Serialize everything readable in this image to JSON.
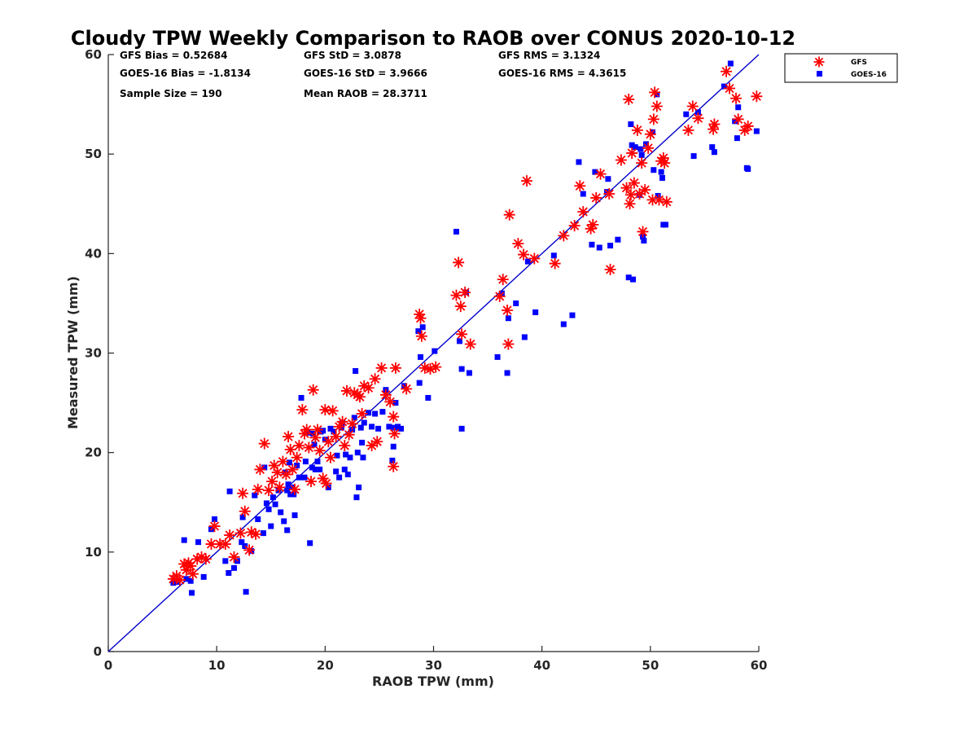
{
  "chart_data": {
    "type": "scatter",
    "title": "Cloudy TPW Weekly Comparison to RAOB over CONUS 2020-10-12",
    "xlabel": "RAOB TPW (mm)",
    "ylabel": "Measured TPW (mm)",
    "xlim": [
      0,
      60
    ],
    "ylim": [
      0,
      60
    ],
    "xticks": [
      "0",
      "10",
      "20",
      "30",
      "40",
      "50",
      "60"
    ],
    "yticks": [
      "0",
      "10",
      "20",
      "30",
      "40",
      "50",
      "60"
    ],
    "grid": false,
    "legend_position": "outside-top-right",
    "reference_line": {
      "x": [
        0,
        60
      ],
      "y": [
        0,
        60
      ],
      "color": "#0000cc"
    },
    "stats": [
      [
        "GFS Bias = 0.52684",
        "GFS StD = 3.0878",
        "GFS RMS = 3.1324"
      ],
      [
        "GOES-16 Bias = -1.8134",
        "GOES-16 StD = 3.9666",
        "GOES-16 RMS = 4.3615"
      ],
      [
        "Sample Size = 190",
        "Mean RAOB = 28.3711",
        ""
      ]
    ],
    "series": [
      {
        "name": "GFS",
        "marker": "asterisk",
        "color": "#ff0000",
        "points": [
          [
            6.0,
            7.3
          ],
          [
            6.3,
            7.6
          ],
          [
            6.6,
            7.2
          ],
          [
            7.0,
            8.8
          ],
          [
            7.2,
            8.2
          ],
          [
            7.4,
            8.9
          ],
          [
            7.6,
            8.6
          ],
          [
            7.8,
            7.8
          ],
          [
            8.2,
            9.3
          ],
          [
            8.6,
            9.5
          ],
          [
            9.0,
            9.3
          ],
          [
            9.5,
            10.8
          ],
          [
            9.8,
            12.6
          ],
          [
            10.3,
            10.8
          ],
          [
            10.8,
            10.8
          ],
          [
            11.2,
            11.7
          ],
          [
            11.6,
            9.5
          ],
          [
            12.2,
            11.9
          ],
          [
            12.4,
            15.9
          ],
          [
            12.6,
            14.1
          ],
          [
            13.0,
            10.2
          ],
          [
            13.2,
            12.0
          ],
          [
            13.6,
            11.8
          ],
          [
            13.8,
            16.3
          ],
          [
            14.0,
            18.3
          ],
          [
            14.4,
            20.9
          ],
          [
            14.8,
            16.2
          ],
          [
            15.1,
            17.1
          ],
          [
            15.3,
            18.7
          ],
          [
            15.6,
            18.0
          ],
          [
            15.8,
            16.5
          ],
          [
            16.1,
            19.1
          ],
          [
            16.4,
            17.8
          ],
          [
            16.6,
            21.6
          ],
          [
            16.8,
            20.3
          ],
          [
            17.0,
            18.3
          ],
          [
            17.2,
            16.3
          ],
          [
            17.4,
            19.5
          ],
          [
            17.6,
            20.7
          ],
          [
            17.9,
            24.3
          ],
          [
            18.1,
            21.9
          ],
          [
            18.3,
            22.3
          ],
          [
            18.5,
            20.5
          ],
          [
            18.7,
            17.1
          ],
          [
            18.9,
            26.3
          ],
          [
            19.1,
            21.5
          ],
          [
            19.3,
            22.3
          ],
          [
            19.5,
            20.2
          ],
          [
            19.8,
            17.4
          ],
          [
            20.0,
            24.3
          ],
          [
            20.1,
            16.9
          ],
          [
            20.3,
            21.1
          ],
          [
            20.5,
            19.5
          ],
          [
            20.7,
            24.2
          ],
          [
            21.0,
            21.6
          ],
          [
            21.3,
            22.6
          ],
          [
            21.6,
            23.1
          ],
          [
            21.8,
            20.7
          ],
          [
            22.0,
            26.2
          ],
          [
            22.2,
            21.8
          ],
          [
            22.5,
            22.9
          ],
          [
            22.7,
            26.0
          ],
          [
            23.0,
            25.8
          ],
          [
            23.2,
            25.6
          ],
          [
            23.4,
            23.9
          ],
          [
            23.6,
            26.7
          ],
          [
            24.0,
            26.5
          ],
          [
            24.3,
            20.7
          ],
          [
            24.6,
            27.4
          ],
          [
            24.8,
            21.1
          ],
          [
            25.2,
            28.5
          ],
          [
            25.6,
            25.8
          ],
          [
            26.0,
            25.1
          ],
          [
            26.3,
            23.6
          ],
          [
            26.4,
            21.9
          ],
          [
            26.5,
            28.5
          ],
          [
            26.3,
            18.6
          ],
          [
            27.5,
            26.4
          ],
          [
            28.7,
            33.9
          ],
          [
            28.8,
            33.5
          ],
          [
            28.9,
            31.7
          ],
          [
            29.2,
            28.5
          ],
          [
            29.7,
            28.4
          ],
          [
            30.2,
            28.6
          ],
          [
            32.1,
            35.8
          ],
          [
            32.3,
            39.1
          ],
          [
            32.5,
            34.7
          ],
          [
            32.6,
            31.9
          ],
          [
            32.9,
            36.1
          ],
          [
            33.4,
            30.9
          ],
          [
            36.1,
            35.7
          ],
          [
            36.4,
            37.4
          ],
          [
            36.8,
            34.3
          ],
          [
            36.9,
            30.9
          ],
          [
            37.0,
            43.9
          ],
          [
            37.8,
            41.0
          ],
          [
            38.3,
            39.9
          ],
          [
            38.6,
            47.3
          ],
          [
            39.3,
            39.5
          ],
          [
            41.2,
            39.0
          ],
          [
            42.0,
            41.8
          ],
          [
            43.0,
            42.8
          ],
          [
            43.5,
            46.8
          ],
          [
            43.8,
            44.2
          ],
          [
            44.5,
            42.5
          ],
          [
            44.7,
            42.9
          ],
          [
            45.0,
            45.6
          ],
          [
            45.4,
            48.0
          ],
          [
            46.2,
            46.0
          ],
          [
            46.3,
            38.4
          ],
          [
            47.3,
            49.4
          ],
          [
            47.8,
            46.6
          ],
          [
            48.0,
            55.5
          ],
          [
            48.1,
            45.0
          ],
          [
            48.2,
            45.9
          ],
          [
            48.3,
            50.1
          ],
          [
            48.5,
            47.1
          ],
          [
            48.8,
            52.4
          ],
          [
            49.0,
            46.0
          ],
          [
            49.2,
            49.1
          ],
          [
            49.3,
            42.2
          ],
          [
            49.5,
            46.4
          ],
          [
            49.8,
            50.6
          ],
          [
            50.0,
            52.0
          ],
          [
            50.2,
            45.4
          ],
          [
            50.3,
            53.5
          ],
          [
            50.4,
            56.2
          ],
          [
            50.6,
            54.8
          ],
          [
            50.8,
            45.4
          ],
          [
            51.0,
            49.3
          ],
          [
            51.2,
            49.6
          ],
          [
            51.3,
            49.1
          ],
          [
            51.5,
            45.2
          ],
          [
            53.5,
            52.4
          ],
          [
            53.9,
            54.8
          ],
          [
            54.4,
            53.6
          ],
          [
            55.8,
            52.5
          ],
          [
            55.9,
            53.0
          ],
          [
            57.0,
            58.3
          ],
          [
            57.3,
            56.6
          ],
          [
            57.9,
            55.6
          ],
          [
            58.1,
            53.5
          ],
          [
            58.7,
            52.4
          ],
          [
            59.0,
            52.8
          ],
          [
            59.8,
            55.8
          ]
        ]
      },
      {
        "name": "GOES-16",
        "marker": "square",
        "color": "#0000ff",
        "points": [
          [
            6.0,
            6.9
          ],
          [
            6.4,
            7.0
          ],
          [
            7.0,
            11.2
          ],
          [
            7.2,
            7.3
          ],
          [
            7.6,
            7.1
          ],
          [
            7.7,
            5.9
          ],
          [
            8.3,
            11.0
          ],
          [
            8.8,
            7.5
          ],
          [
            9.5,
            12.3
          ],
          [
            9.8,
            13.3
          ],
          [
            10.8,
            9.1
          ],
          [
            11.1,
            7.9
          ],
          [
            11.2,
            16.1
          ],
          [
            11.6,
            8.4
          ],
          [
            11.9,
            9.1
          ],
          [
            12.3,
            11.0
          ],
          [
            12.4,
            13.5
          ],
          [
            12.6,
            10.6
          ],
          [
            12.7,
            6.0
          ],
          [
            13.2,
            10.1
          ],
          [
            13.5,
            15.7
          ],
          [
            13.8,
            13.3
          ],
          [
            14.3,
            11.9
          ],
          [
            14.4,
            18.5
          ],
          [
            14.6,
            14.9
          ],
          [
            14.8,
            14.3
          ],
          [
            15.0,
            12.6
          ],
          [
            15.2,
            15.5
          ],
          [
            15.4,
            14.8
          ],
          [
            15.7,
            16.2
          ],
          [
            15.9,
            14.0
          ],
          [
            16.2,
            13.1
          ],
          [
            16.3,
            18.0
          ],
          [
            16.5,
            12.2
          ],
          [
            16.5,
            16.2
          ],
          [
            16.6,
            16.8
          ],
          [
            16.7,
            19.0
          ],
          [
            16.8,
            15.8
          ],
          [
            16.9,
            16.5
          ],
          [
            17.1,
            15.8
          ],
          [
            17.2,
            13.7
          ],
          [
            17.4,
            18.7
          ],
          [
            17.6,
            17.5
          ],
          [
            17.8,
            25.5
          ],
          [
            18.1,
            17.5
          ],
          [
            18.2,
            19.1
          ],
          [
            18.4,
            22.0
          ],
          [
            18.6,
            10.9
          ],
          [
            18.8,
            18.5
          ],
          [
            18.9,
            21.9
          ],
          [
            19.0,
            20.8
          ],
          [
            19.1,
            18.3
          ],
          [
            19.3,
            19.1
          ],
          [
            19.5,
            18.3
          ],
          [
            19.6,
            22.1
          ],
          [
            19.8,
            22.2
          ],
          [
            20.0,
            21.3
          ],
          [
            20.3,
            16.5
          ],
          [
            20.5,
            22.4
          ],
          [
            20.8,
            22.1
          ],
          [
            21.0,
            18.1
          ],
          [
            21.1,
            19.7
          ],
          [
            21.3,
            17.5
          ],
          [
            21.5,
            22.5
          ],
          [
            21.6,
            23.0
          ],
          [
            21.8,
            18.3
          ],
          [
            21.9,
            19.8
          ],
          [
            22.1,
            17.8
          ],
          [
            22.3,
            19.5
          ],
          [
            22.5,
            22.3
          ],
          [
            22.7,
            23.5
          ],
          [
            22.8,
            28.2
          ],
          [
            22.9,
            15.5
          ],
          [
            23.0,
            20.0
          ],
          [
            23.1,
            16.5
          ],
          [
            23.3,
            22.5
          ],
          [
            23.4,
            21.0
          ],
          [
            23.5,
            19.5
          ],
          [
            23.6,
            23.0
          ],
          [
            24.0,
            24.0
          ],
          [
            24.3,
            22.6
          ],
          [
            24.6,
            23.9
          ],
          [
            24.9,
            22.4
          ],
          [
            25.3,
            24.1
          ],
          [
            25.6,
            26.3
          ],
          [
            25.9,
            22.6
          ],
          [
            26.2,
            19.2
          ],
          [
            26.3,
            20.6
          ],
          [
            26.4,
            22.5
          ],
          [
            26.5,
            25.0
          ],
          [
            26.7,
            22.6
          ],
          [
            27.0,
            22.4
          ],
          [
            27.3,
            26.7
          ],
          [
            28.6,
            32.2
          ],
          [
            28.7,
            27.0
          ],
          [
            28.8,
            29.6
          ],
          [
            29.0,
            32.6
          ],
          [
            29.5,
            25.5
          ],
          [
            30.1,
            30.2
          ],
          [
            32.1,
            42.2
          ],
          [
            32.4,
            31.2
          ],
          [
            32.6,
            28.4
          ],
          [
            32.6,
            22.4
          ],
          [
            33.0,
            36.1
          ],
          [
            33.3,
            28.0
          ],
          [
            35.9,
            29.6
          ],
          [
            36.3,
            36.0
          ],
          [
            36.9,
            33.5
          ],
          [
            36.8,
            28.0
          ],
          [
            37.6,
            35.0
          ],
          [
            38.4,
            31.6
          ],
          [
            38.7,
            39.2
          ],
          [
            39.4,
            34.1
          ],
          [
            41.1,
            39.8
          ],
          [
            42.0,
            32.9
          ],
          [
            42.8,
            33.8
          ],
          [
            43.4,
            49.2
          ],
          [
            43.8,
            46.0
          ],
          [
            44.6,
            40.9
          ],
          [
            44.9,
            48.2
          ],
          [
            45.3,
            40.6
          ],
          [
            46.0,
            46.2
          ],
          [
            46.1,
            47.5
          ],
          [
            46.3,
            40.8
          ],
          [
            47.0,
            41.4
          ],
          [
            48.0,
            37.6
          ],
          [
            48.2,
            53.0
          ],
          [
            48.3,
            50.9
          ],
          [
            48.4,
            37.4
          ],
          [
            48.6,
            50.7
          ],
          [
            49.0,
            45.9
          ],
          [
            49.1,
            50.5
          ],
          [
            49.2,
            49.9
          ],
          [
            49.3,
            41.7
          ],
          [
            49.4,
            41.3
          ],
          [
            49.6,
            51.0
          ],
          [
            50.2,
            52.2
          ],
          [
            50.3,
            48.4
          ],
          [
            50.6,
            56.0
          ],
          [
            50.7,
            45.8
          ],
          [
            51.0,
            48.2
          ],
          [
            51.1,
            47.6
          ],
          [
            51.2,
            42.9
          ],
          [
            51.4,
            42.9
          ],
          [
            53.3,
            54.0
          ],
          [
            54.0,
            49.8
          ],
          [
            54.4,
            54.2
          ],
          [
            55.7,
            50.7
          ],
          [
            55.9,
            50.2
          ],
          [
            56.8,
            56.8
          ],
          [
            57.4,
            59.1
          ],
          [
            57.8,
            53.3
          ],
          [
            58.0,
            51.6
          ],
          [
            58.1,
            54.7
          ],
          [
            58.9,
            48.6
          ],
          [
            59.0,
            48.5
          ],
          [
            59.8,
            52.3
          ]
        ]
      }
    ]
  }
}
